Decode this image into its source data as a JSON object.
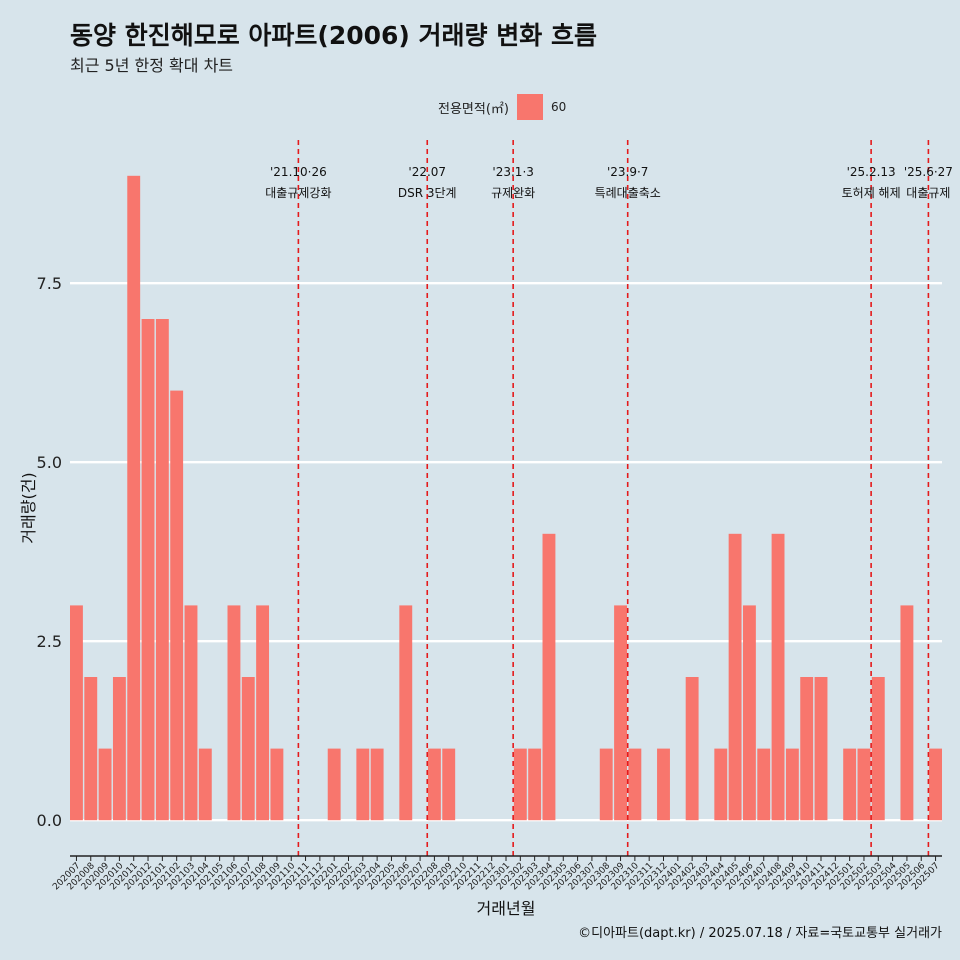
{
  "title": "동양 한진해모로 아파트(2006) 거래량 변화 흐름",
  "subtitle": "최근 5년 한정 확대 차트",
  "legend": {
    "title": "전용면적(㎡)",
    "entry": "60"
  },
  "caption": "©디아파트(dapt.kr) / 2025.07.18 / 자료=국토교통부 실거래가",
  "colors": {
    "bar": "#f8766d",
    "background": "#d7e4eb",
    "grid": "#ffffff",
    "event_line": "#e41a1c"
  },
  "chart_data": {
    "type": "bar",
    "xlabel": "거래년월",
    "ylabel": "거래량(건)",
    "ylim": [
      -0.5,
      9.5
    ],
    "yticks": [
      0.0,
      2.5,
      5.0,
      7.5
    ],
    "ytick_labels": [
      "0.0",
      "2.5",
      "5.0",
      "7.5"
    ],
    "grid": true,
    "legend_position": "top",
    "categories": [
      "202007",
      "202008",
      "202009",
      "202010",
      "202011",
      "202012",
      "202101",
      "202102",
      "202103",
      "202104",
      "202105",
      "202106",
      "202107",
      "202108",
      "202109",
      "202110",
      "202111",
      "202112",
      "202201",
      "202202",
      "202203",
      "202204",
      "202205",
      "202206",
      "202207",
      "202208",
      "202209",
      "202210",
      "202211",
      "202212",
      "202301",
      "202302",
      "202303",
      "202304",
      "202305",
      "202306",
      "202307",
      "202308",
      "202309",
      "202310",
      "202311",
      "202312",
      "202401",
      "202402",
      "202403",
      "202404",
      "202405",
      "202406",
      "202407",
      "202408",
      "202409",
      "202410",
      "202411",
      "202412",
      "202501",
      "202502",
      "202503",
      "202504",
      "202505",
      "202506",
      "202507"
    ],
    "series": [
      {
        "name": "60",
        "values": [
          3,
          2,
          1,
          2,
          9,
          7,
          7,
          6,
          3,
          1,
          0,
          3,
          2,
          3,
          1,
          0,
          0,
          0,
          1,
          0,
          1,
          1,
          0,
          3,
          0,
          1,
          1,
          0,
          0,
          0,
          0,
          1,
          1,
          4,
          0,
          0,
          0,
          1,
          3,
          1,
          0,
          1,
          0,
          2,
          0,
          1,
          4,
          3,
          1,
          4,
          1,
          2,
          2,
          0,
          1,
          1,
          2,
          0,
          3,
          0,
          1
        ]
      }
    ],
    "annotations": [
      {
        "at": 15,
        "date": "'21.10·26",
        "label": "대출규제강화"
      },
      {
        "at": 24,
        "date": "'22.07",
        "label": "DSR 3단계"
      },
      {
        "at": 30,
        "date": "'23.1·3",
        "label": "규제완화"
      },
      {
        "at": 38,
        "date": "'23.9·7",
        "label": "특례대출축소"
      },
      {
        "at": 55,
        "date": "'25.2.13",
        "label": "토허제 해제"
      },
      {
        "at": 59,
        "date": "'25.6·27",
        "label": "대출규제"
      }
    ]
  }
}
